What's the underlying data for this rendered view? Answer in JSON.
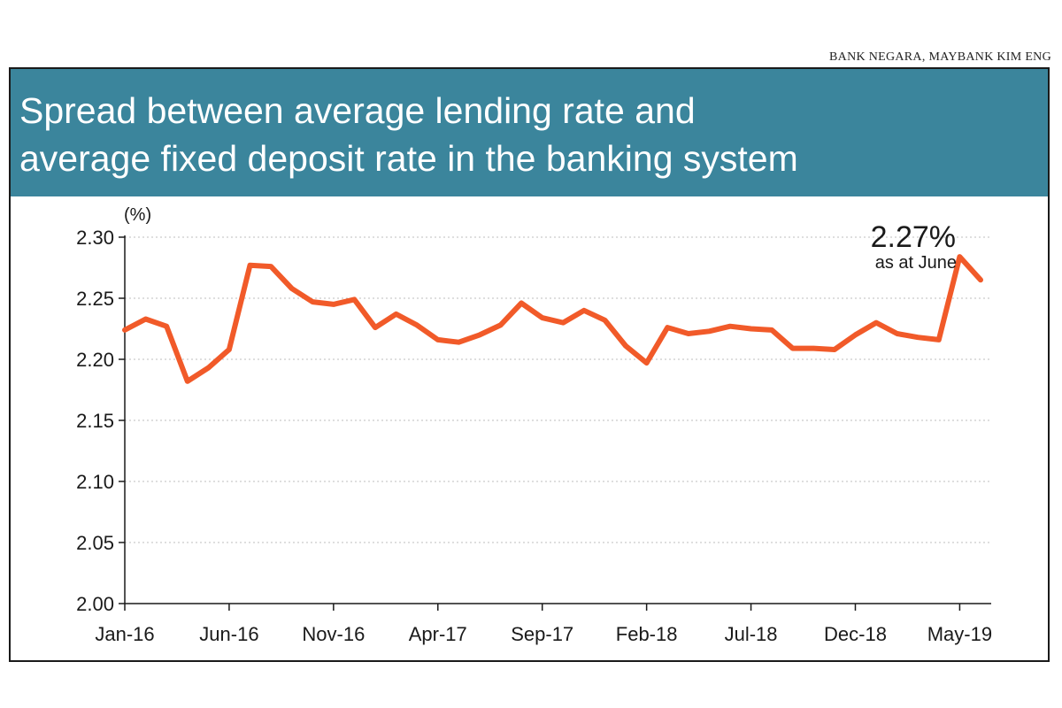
{
  "source": "BANK NEGARA, MAYBANK KIM ENG",
  "title": {
    "line1": "Spread between average lending rate and",
    "line2": "average fixed deposit rate in the banking system"
  },
  "colors": {
    "header_bg": "#3b859c",
    "line": "#f15a29",
    "grid": "#bdbdbd",
    "text": "#1a1a1a"
  },
  "annotation": {
    "value": "2.27%",
    "label": "as at June"
  },
  "chart_data": {
    "type": "line",
    "title": "Spread between average lending rate and average fixed deposit rate in the banking system",
    "ylabel": "(%)",
    "xlabel": "",
    "ylim": [
      2.0,
      2.3
    ],
    "yticks": [
      "2.30",
      "2.25",
      "2.20",
      "2.15",
      "2.10",
      "2.05",
      "2.00"
    ],
    "ytick_values": [
      2.3,
      2.25,
      2.2,
      2.15,
      2.1,
      2.05,
      2.0
    ],
    "xtick_labels": [
      "Jan-16",
      "Jun-16",
      "Nov-16",
      "Apr-17",
      "Sep-17",
      "Feb-18",
      "Jul-18",
      "Dec-18",
      "May-19"
    ],
    "xtick_index": [
      0,
      5,
      10,
      15,
      20,
      25,
      30,
      35,
      40
    ],
    "grid": "horizontal dotted",
    "x": [
      "Jan-16",
      "Feb-16",
      "Mar-16",
      "Apr-16",
      "May-16",
      "Jun-16",
      "Jul-16",
      "Aug-16",
      "Sep-16",
      "Oct-16",
      "Nov-16",
      "Dec-16",
      "Jan-17",
      "Feb-17",
      "Mar-17",
      "Apr-17",
      "May-17",
      "Jun-17",
      "Jul-17",
      "Aug-17",
      "Sep-17",
      "Oct-17",
      "Nov-17",
      "Dec-17",
      "Jan-18",
      "Feb-18",
      "Mar-18",
      "Apr-18",
      "May-18",
      "Jun-18",
      "Jul-18",
      "Aug-18",
      "Sep-18",
      "Oct-18",
      "Nov-18",
      "Dec-18",
      "Jan-19",
      "Feb-19",
      "Mar-19",
      "Apr-19",
      "May-19",
      "Jun-19"
    ],
    "series": [
      {
        "values": [
          2.224,
          2.233,
          2.227,
          2.182,
          2.193,
          2.208,
          2.277,
          2.276,
          2.258,
          2.247,
          2.245,
          2.249,
          2.226,
          2.237,
          2.228,
          2.216,
          2.214,
          2.22,
          2.228,
          2.246,
          2.234,
          2.23,
          2.24,
          2.232,
          2.211,
          2.197,
          2.226,
          2.221,
          2.223,
          2.227,
          2.225,
          2.224,
          2.209,
          2.209,
          2.208,
          2.22,
          2.23,
          2.221,
          2.218,
          2.216,
          2.284,
          2.265
        ]
      }
    ]
  }
}
